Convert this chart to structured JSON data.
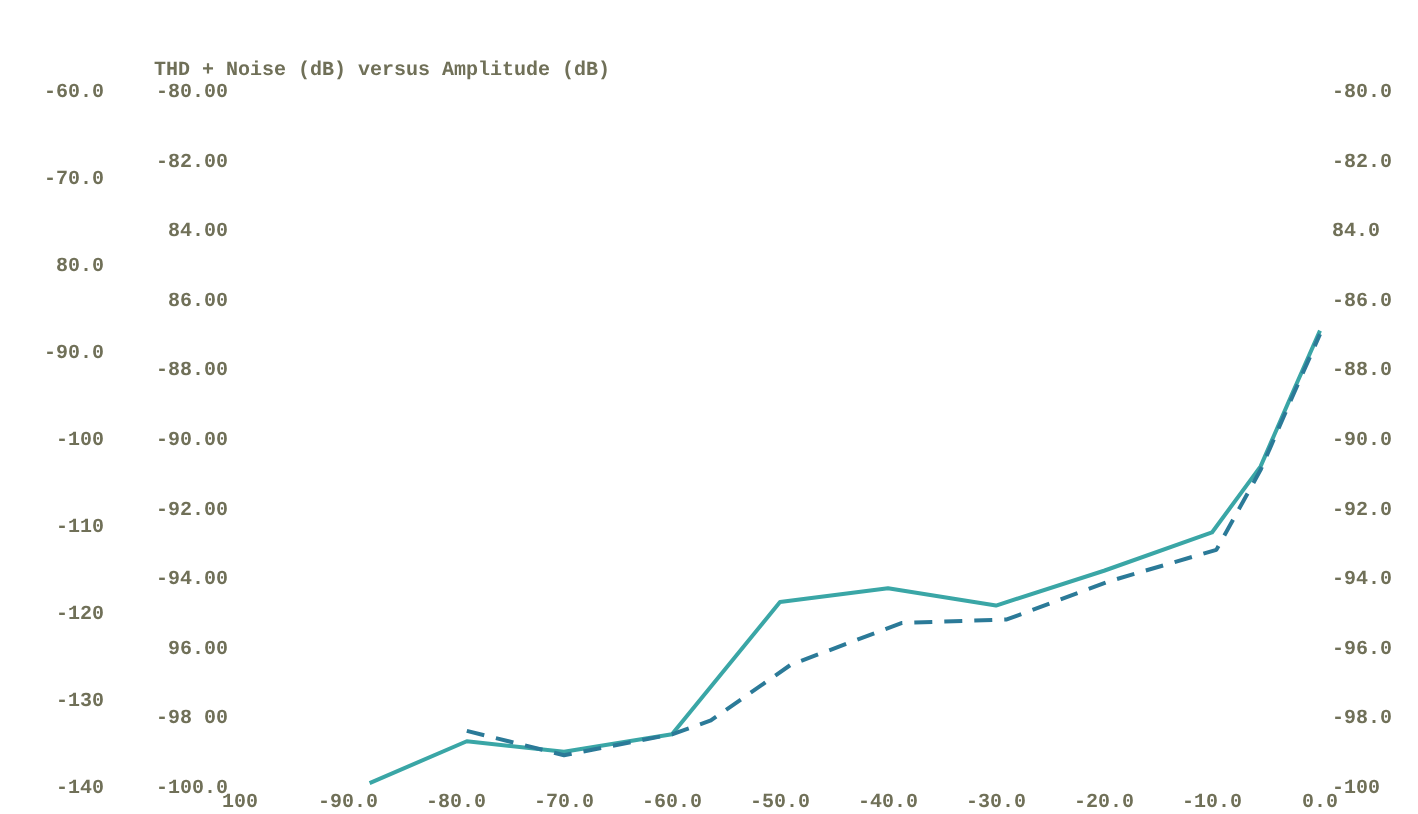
{
  "chart_data": {
    "type": "line",
    "title": "THD + Noise (dB) versus Amplitude (dB)",
    "xlim": [
      -100,
      0
    ],
    "xticks": [
      {
        "value": -100,
        "label": "100"
      },
      {
        "value": -90,
        "label": "-90.0"
      },
      {
        "value": -80,
        "label": "-80.0"
      },
      {
        "value": -70,
        "label": "-70.0"
      },
      {
        "value": -60,
        "label": "-60.0"
      },
      {
        "value": -50,
        "label": "-50.0"
      },
      {
        "value": -40,
        "label": "-40.0"
      },
      {
        "value": -30,
        "label": "-30.0"
      },
      {
        "value": -20,
        "label": "-20.0"
      },
      {
        "value": -10,
        "label": "-10.0"
      },
      {
        "value": 0,
        "label": "0.0"
      }
    ],
    "ylim": [
      -100,
      -80
    ],
    "yticks": [
      {
        "value": -80,
        "label": "-80.00"
      },
      {
        "value": -82,
        "label": "-82.00"
      },
      {
        "value": -84,
        "label": "84.00"
      },
      {
        "value": -86,
        "label": "86.00"
      },
      {
        "value": -88,
        "label": "-88.00"
      },
      {
        "value": -90,
        "label": "-90.00"
      },
      {
        "value": -92,
        "label": "-92.00"
      },
      {
        "value": -94,
        "label": "-94.00"
      },
      {
        "value": -96,
        "label": "96.00"
      },
      {
        "value": -98,
        "label": "-98 00"
      },
      {
        "value": -100,
        "label": "-100.0"
      }
    ],
    "y2lim": [
      -100,
      -80
    ],
    "y2ticks": [
      {
        "value": -80,
        "label": "-80.0"
      },
      {
        "value": -82,
        "label": "-82.0"
      },
      {
        "value": -84,
        "label": "84.0"
      },
      {
        "value": -86,
        "label": "-86.0"
      },
      {
        "value": -88,
        "label": "-88.0"
      },
      {
        "value": -90,
        "label": "-90.0"
      },
      {
        "value": -92,
        "label": "-92.0"
      },
      {
        "value": -94,
        "label": "-94.0"
      },
      {
        "value": -96,
        "label": "-96.0"
      },
      {
        "value": -98,
        "label": "-98.0"
      },
      {
        "value": -100,
        "label": "-100"
      }
    ],
    "y3lim": [
      -140,
      -60
    ],
    "y3ticks": [
      {
        "value": -60,
        "label": "-60.0"
      },
      {
        "value": -70,
        "label": "-70.0"
      },
      {
        "value": -80,
        "label": "80.0"
      },
      {
        "value": -90,
        "label": "-90.0"
      },
      {
        "value": -100,
        "label": "-100"
      },
      {
        "value": -110,
        "label": "-110"
      },
      {
        "value": -120,
        "label": "-120"
      },
      {
        "value": -130,
        "label": "-130"
      },
      {
        "value": -140,
        "label": "-140"
      }
    ],
    "series": [
      {
        "color": "#3aa6a6",
        "line_style": "solid",
        "x": [
          -88,
          -79,
          -70,
          -60,
          -50,
          -40,
          -30,
          -20,
          -10,
          -5.5,
          -2.7,
          0
        ],
        "values": [
          -99.8,
          -98.6,
          -98.9,
          -98.4,
          -94.6,
          -94.2,
          -94.7,
          -93.7,
          -92.6,
          -90.7,
          -88.7,
          -86.8
        ]
      },
      {
        "color": "#2b7a98",
        "line_style": "dashed",
        "x": [
          -79,
          -70,
          -60,
          -56.4,
          -49,
          -38.7,
          -29,
          -19.5,
          -9.6,
          -5.5,
          -2.7,
          0
        ],
        "values": [
          -98.3,
          -99.0,
          -98.4,
          -98.0,
          -96.4,
          -95.2,
          -95.1,
          -94.0,
          -93.1,
          -90.8,
          -88.8,
          -86.9
        ]
      }
    ]
  }
}
